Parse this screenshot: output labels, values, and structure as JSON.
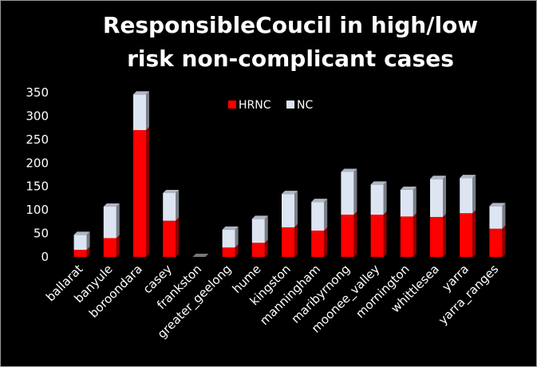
{
  "chart_data": {
    "type": "bar",
    "stacked": true,
    "title_lines": [
      "ResponsibleCoucil in high/low",
      "risk non-complicant cases"
    ],
    "categories": [
      "ballarat",
      "banyule",
      "boroondara",
      "casey",
      "frankston",
      "greater_geelong",
      "hume",
      "kingston",
      "manningham",
      "maribyrnong",
      "moonee_valley",
      "mornington",
      "whittlesea",
      "yarra",
      "yarra_ranges"
    ],
    "series": [
      {
        "name": "HRNC",
        "color": "#ff0000",
        "values": [
          15,
          40,
          270,
          77,
          0,
          20,
          30,
          63,
          56,
          90,
          90,
          86,
          85,
          93,
          60
        ]
      },
      {
        "name": "NC",
        "color": "#dde5f3",
        "values": [
          32,
          67,
          76,
          59,
          0,
          38,
          51,
          71,
          61,
          91,
          64,
          57,
          81,
          75,
          48
        ]
      }
    ],
    "y_ticks": [
      "0",
      "50",
      "100",
      "150",
      "200",
      "250",
      "300",
      "350"
    ],
    "ylim": [
      0,
      350
    ],
    "legend_position": "top-center",
    "grid": false,
    "background": "#000000"
  }
}
